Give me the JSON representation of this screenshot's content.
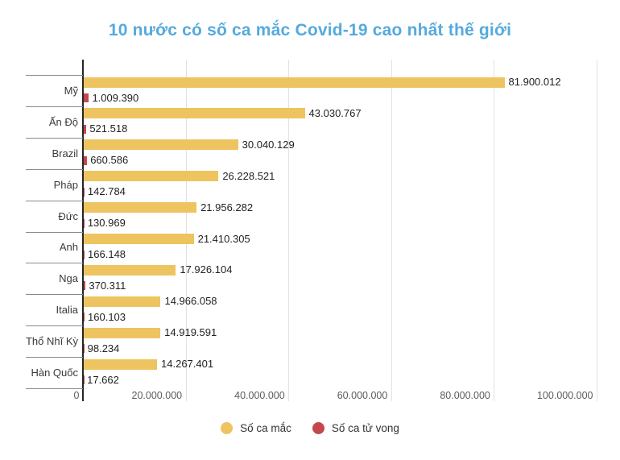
{
  "title": "10 nước có số ca mắc Covid-19 cao nhất thế giới",
  "colors": {
    "title": "#55aadd",
    "cases_bar": "#edc45f",
    "deaths_bar": "#c5474e",
    "axis_line": "#262626",
    "separator": "#8a8a8a",
    "gridline": "#e2e2e2",
    "value_text": "#1f1f1f",
    "category_text": "#3a3a3a",
    "tick_text": "#5c5c5c",
    "legend_text": "#333333"
  },
  "chart_data": {
    "type": "bar",
    "orientation": "horizontal",
    "title": "10 nước có số ca mắc Covid-19 cao nhất thế giới",
    "categories": [
      "Mỹ",
      "Ấn Độ",
      "Brazil",
      "Pháp",
      "Đức",
      "Anh",
      "Nga",
      "Italia",
      "Thổ Nhĩ Kỳ",
      "Hàn Quốc"
    ],
    "series": [
      {
        "name": "Số ca mắc",
        "color": "#edc45f",
        "values": [
          81900012,
          43030767,
          30040129,
          26228521,
          21956282,
          21410305,
          17926104,
          14966058,
          14919591,
          14267401
        ],
        "labels": [
          "81.900.012",
          "43.030.767",
          "30.040.129",
          "26.228.521",
          "21.956.282",
          "21.410.305",
          "17.926.104",
          "14.966.058",
          "14.919.591",
          "14.267.401"
        ]
      },
      {
        "name": "Số ca tử vong",
        "color": "#c5474e",
        "values": [
          1009390,
          521518,
          660586,
          142784,
          130969,
          166148,
          370311,
          160103,
          98234,
          17662
        ],
        "labels": [
          "1.009.390",
          "521.518",
          "660.586",
          "142.784",
          "130.969",
          "166.148",
          "370.311",
          "160.103",
          "98.234",
          "17.662"
        ]
      }
    ],
    "x_axis": {
      "min": 0,
      "max": 100000000,
      "tick_step": 20000000,
      "tick_values": [
        0,
        20000000,
        40000000,
        60000000,
        80000000,
        100000000
      ],
      "tick_labels": [
        "0",
        "20.000.000",
        "40.000.000",
        "60.000.000",
        "80.000.000",
        "100.000.000"
      ]
    },
    "grid": true,
    "legend_position": "bottom"
  }
}
